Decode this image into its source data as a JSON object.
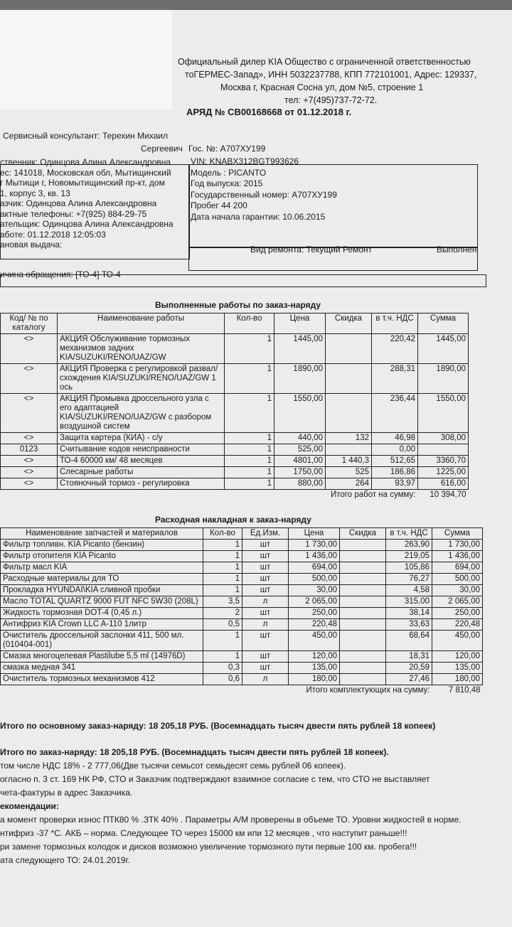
{
  "header": {
    "lines": [
      "Официальный дилер KIA Общество с ограниченной ответственностью",
      "тоГЕРМЕС-Запад», ИНН 5032237788, КПП 772101001, Адрес: 129337,",
      "Москва г, Красная Сосна ул, дом №5, строение 1",
      "тел: +7(495)737-72-72."
    ],
    "title": "АРЯД № СВ00168668 от 01.12.2018 г.",
    "consultant": "Сервисный консультант: Терехин Михаил",
    "consultant_cont": "Сергеевич",
    "plate": "Гос. №:  А707ХУ199"
  },
  "client": {
    "lines": [
      "ственник: Одинцова Алина Александровна",
      "ес: 141018, Московская обл, Мытищинский",
      "г Мытищи г, Новомытищинский пр-кт, дом",
      "1, корпус 3, кв. 13",
      "азчик: Одинцова Алина Александровна",
      "актные телефоны: +7(925) 884-29-75",
      "ательщик: Одинцова Алина Александровна",
      "аботе: 01.12.2018 12:05:03",
      "ановая выдача:"
    ]
  },
  "vehicle": {
    "lines": [
      "VIN: KNABX312BGT993626",
      "Модель : PICANTO",
      "Год выпуска: 2015",
      "Государственный номер:  А707ХУ199",
      "Пробег 44 200",
      "Дата начала гарантии: 10.06.2015"
    ],
    "repair_type": "Вид ремонта: Текущий Ремонт",
    "status": "Выполнен"
  },
  "reason": "ичина обращения:  [ТО-4] ТО-4",
  "works": {
    "title": "Выполненные работы по заказ-наряду",
    "columns": [
      "Код/ № по каталогу",
      "Наименование работы",
      "Кол-во",
      "Цена",
      "Скидка",
      "в т.ч. НДС",
      "Сумма"
    ],
    "rows": [
      [
        "<>",
        "АКЦИЯ Обслуживание тормозных механизмов задних KIA/SUZUKI/RENO/UAZ/GW",
        "1",
        "1445,00",
        "",
        "220,42",
        "1445,00"
      ],
      [
        "<>",
        "АКЦИЯ Проверка с регулировкой развал/схождения KIA/SUZUKI/RENO/UAZ/GW 1 ось",
        "1",
        "1890,00",
        "",
        "288,31",
        "1890,00"
      ],
      [
        "<>",
        "АКЦИЯ Промывка дроссельного узла с его адаптацией KIA/SUZUKI/RENO/UAZ/GW с разбором воздушной систем",
        "1",
        "1550,00",
        "",
        "236,44",
        "1550,00"
      ],
      [
        "<>",
        "Защита картера (КИА) - с/у",
        "1",
        "440,00",
        "132",
        "46,98",
        "308,00"
      ],
      [
        "0123",
        "Считывание кодов неисправности",
        "1",
        "525,00",
        "",
        "0,00",
        ""
      ],
      [
        "<>",
        "ТО-4 60000 км/ 48 месяцев",
        "1",
        "4801,00",
        "1 440,3",
        "512,65",
        "3360,70"
      ],
      [
        "<>",
        "Слесарные работы",
        "1",
        "1750,00",
        "525",
        "186,86",
        "1225,00"
      ],
      [
        "<>",
        "Стояночный тормоз - регулировка",
        "1",
        "880,00",
        "264",
        "93,97",
        "616,00"
      ]
    ],
    "total_label": "Итого работ на сумму:",
    "total": "10 394,70"
  },
  "parts": {
    "title": "Расходная накладная к заказ-наряду",
    "columns": [
      "Наименование запчастей и материалов",
      "Кол-во",
      "Ед.Изм.",
      "Цена",
      "Скидка",
      "в т.ч. НДС",
      "Сумма"
    ],
    "rows": [
      [
        "Фильтр топливн. KIA Picanto (бензин)",
        "1",
        "шт",
        "1 730,00",
        "",
        "263,90",
        "1 730,00"
      ],
      [
        "Фильтр отопителя KIA Picanto",
        "1",
        "шт",
        "1 436,00",
        "",
        "219,05",
        "1 436,00"
      ],
      [
        "Фильтр масл  KIA",
        "1",
        "шт",
        "694,00",
        "",
        "105,86",
        "694,00"
      ],
      [
        "Расходные материалы для ТО",
        "1",
        "шт",
        "500,00",
        "",
        "76,27",
        "500,00"
      ],
      [
        "Прокладка  HYUNDAI\\KIA сливной пробки",
        "1",
        "шт",
        "30,00",
        "",
        "4,58",
        "30,00"
      ],
      [
        "Масло TOTAL QUARTZ 9000 FUT NFC 5W30 (208L)",
        "3,5",
        "л",
        "2 065,00",
        "",
        "315,00",
        "2 065,00"
      ],
      [
        "Жидкость тормозная DOT-4 (0,45 л.)",
        "2",
        "шт",
        "250,00",
        "",
        "38,14",
        "250,00"
      ],
      [
        "Антифриз KIA Crown LLC A-110 1литр",
        "0,5",
        "л",
        "220,48",
        "",
        "33,63",
        "220,48"
      ],
      [
        "Очиститель дроссельной заслонки 411, 500 мл.(010404-001)",
        "1",
        "шт",
        "450,00",
        "",
        "68,64",
        "450,00"
      ],
      [
        "Смазка многоцелевая Plastilube 5,5 ml (14976D)",
        "1",
        "шт",
        "120,00",
        "",
        "18,31",
        "120,00"
      ],
      [
        "смазка медная 341",
        "0,3",
        "шт",
        "135,00",
        "",
        "20,59",
        "135,00"
      ],
      [
        "Очиститель тормозных механизмов 412",
        "0,6",
        "л",
        "180,00",
        "",
        "27,46",
        "180,00"
      ]
    ],
    "total_label": "Итого комплектующих на сумму:",
    "total": "7 810,48"
  },
  "footer": {
    "lines": [
      "Итого по основному заказ-наряду:  18 205,18 РУБ. (Восемнадцать тысяч двести пять рублей 18 копеек)",
      "Итого по заказ-наряду: 18 205,18 РУБ. (Восемнадцать тысяч двести пять рублей 18 копеек).",
      "том числе НДС 18% - 2 777,06(Две тысячи семьсот семьдесят семь рублей 06 копеек).",
      "огласно п. 3 ст. 169 НК РФ, СТО и Заказчик подтверждают взаимное согласие с тем, что СТО не выставляет",
      "чета-фактуры в адрес Заказчика.",
      "екомендации:",
      "а момент проверки износ ПТК80  % .ЗТК  40% . Параметры А/М  проверены в объеме ТО. Уровни жидкостей в норме.",
      "нтифриз -37 *С. АКБ – норма. Следующее ТО через 15000 км или 12 месяцев , что наступит раньше!!!",
      "ри замене тормозных колодок и дисков возможно увеличение тормозного пути первые 100 км. пробега!!!",
      "ата следующего ТО: 24.01.2019г."
    ]
  }
}
